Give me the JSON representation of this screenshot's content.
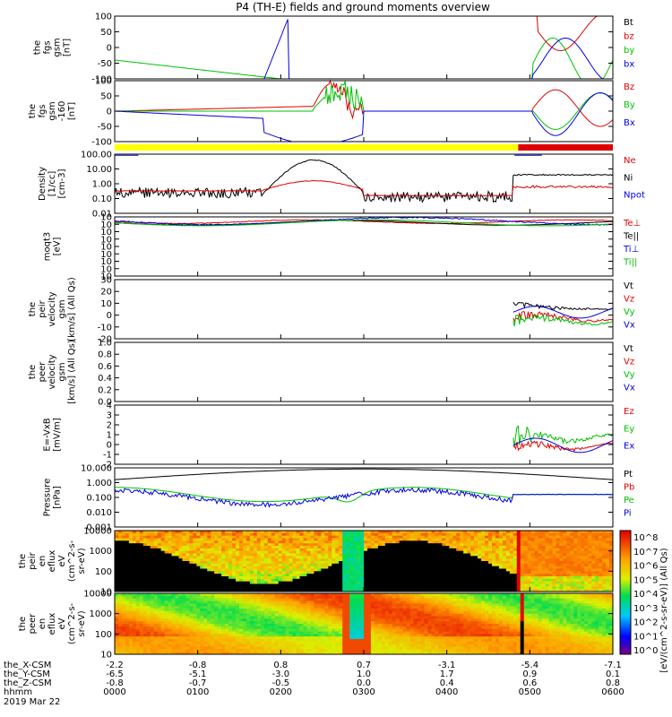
{
  "title": "P4 (TH-E) fields and ground moments overview",
  "date_label": "2019 Mar 22",
  "colors": {
    "black": "#000000",
    "red": "#e00000",
    "green": "#00c000",
    "blue": "#0000e0",
    "yellow": "#ffff00"
  },
  "panels": [
    {
      "id": "fgs",
      "ylabel_lines": [
        "the",
        "fgs",
        "gsm",
        "[nT]"
      ],
      "yticks": [
        "100",
        "50",
        "0",
        "-50",
        "-100"
      ],
      "ylim": [
        -100,
        100
      ],
      "legend": [
        {
          "text": "Bt",
          "color": "black"
        },
        {
          "text": "bz",
          "color": "red"
        },
        {
          "text": "by",
          "color": "green"
        },
        {
          "text": "bx",
          "color": "blue"
        }
      ]
    },
    {
      "id": "fgs_gse",
      "ylabel_lines": [
        "the",
        "fgs",
        "gsm",
        "-160",
        "[nT]"
      ],
      "yticks": [
        "100",
        "50",
        "0",
        "-50",
        "-100"
      ],
      "ylim": [
        -130,
        110
      ],
      "legend": [
        {
          "text": "Bz",
          "color": "red"
        },
        {
          "text": "By",
          "color": "green"
        },
        {
          "text": "Bx",
          "color": "blue"
        }
      ]
    },
    {
      "id": "density",
      "ylabel_lines": [
        "Density",
        "[1/cc]",
        "[cm-3]"
      ],
      "yticks": [
        "100.00",
        "10.00",
        "1.00",
        "0.10",
        "0.01"
      ],
      "log": true,
      "legend": [
        {
          "text": "Ne",
          "color": "red"
        },
        {
          "text": "Ni",
          "color": "black"
        },
        {
          "text": "Npot",
          "color": "blue"
        }
      ]
    },
    {
      "id": "temp",
      "ylabel_lines": [
        "moqt3",
        "[eV]"
      ],
      "yticks": [
        "10",
        "10",
        "10",
        "10",
        "10",
        "10",
        "10",
        "10",
        "10"
      ],
      "legend": [
        {
          "text": "Te⊥",
          "color": "red"
        },
        {
          "text": "Te||",
          "color": "black"
        },
        {
          "text": "Ti⊥",
          "color": "blue"
        },
        {
          "text": "Ti||",
          "color": "green"
        }
      ]
    },
    {
      "id": "peir_vel",
      "ylabel_lines": [
        "the",
        "peir",
        "velocity",
        "gsm",
        "[km/s] (All Qs)"
      ],
      "yticks": [
        "30",
        "20",
        "10",
        "0",
        "-10",
        "-20"
      ],
      "ylim": [
        -20,
        30
      ],
      "legend": [
        {
          "text": "Vt",
          "color": "black"
        },
        {
          "text": "Vz",
          "color": "red"
        },
        {
          "text": "Vy",
          "color": "green"
        },
        {
          "text": "Vx",
          "color": "blue"
        }
      ]
    },
    {
      "id": "peer_vel",
      "ylabel_lines": [
        "the",
        "peer",
        "velocity",
        "gsm",
        "[km/s] (All Qs)"
      ],
      "yticks": [
        "1.0",
        "0.8",
        "0.6",
        "0.4",
        "0.2",
        "0.0"
      ],
      "ylim": [
        0,
        1
      ],
      "legend": [
        {
          "text": "Vt",
          "color": "black"
        },
        {
          "text": "Vz",
          "color": "red"
        },
        {
          "text": "Vy",
          "color": "green"
        },
        {
          "text": "Vx",
          "color": "blue"
        }
      ]
    },
    {
      "id": "efield",
      "ylabel_lines": [
        "E=-VxB",
        "[mV/m]"
      ],
      "yticks": [
        "4",
        "3",
        "2",
        "1",
        "0",
        "-1",
        "-2"
      ],
      "ylim": [
        -2,
        4
      ],
      "legend": [
        {
          "text": "Ez",
          "color": "red"
        },
        {
          "text": "Ey",
          "color": "green"
        },
        {
          "text": "Ex",
          "color": "blue"
        }
      ]
    },
    {
      "id": "pressure",
      "ylabel_lines": [
        "Pressure",
        "[nPa]"
      ],
      "yticks": [
        "10.000",
        "1.000",
        "0.100",
        "0.010",
        "0.001"
      ],
      "log": true,
      "legend": [
        {
          "text": "Pt",
          "color": "black"
        },
        {
          "text": "Pb",
          "color": "red"
        },
        {
          "text": "Pe",
          "color": "green"
        },
        {
          "text": "Pi",
          "color": "blue"
        }
      ]
    },
    {
      "id": "peir_spec",
      "ylabel_lines": [
        "the",
        "peir",
        "en",
        "eflux",
        "eV",
        "(cm^2-s-",
        "sr-eV)"
      ],
      "yticks": [
        "10000",
        "1000",
        "100",
        "10"
      ],
      "spectrogram": true
    },
    {
      "id": "peer_spec",
      "ylabel_lines": [
        "the",
        "peer",
        "en",
        "eflux",
        "eV",
        "(cm^2-s-",
        "sr-eV)"
      ],
      "yticks": [
        "10000",
        "1000",
        "100",
        "10"
      ],
      "spectrogram": true
    }
  ],
  "colorbar": {
    "label": "[eV/(cm^2-s-sr-eV)] (All Qs)",
    "ticks": [
      "10^8",
      "10^7",
      "10^6",
      "10^5",
      "10^4",
      "10^3",
      "10^2",
      "10^1",
      "10^0"
    ]
  },
  "xaxis": {
    "rows": [
      {
        "label": "the_X-CSM",
        "values": [
          "-2.2",
          "-0.8",
          "0.8",
          "0.7",
          "-3.1",
          "-5.4",
          "-7.1"
        ]
      },
      {
        "label": "the_Y-CSM",
        "values": [
          "-6.5",
          "-5.1",
          "-3.0",
          "1.0",
          "1.7",
          "0.9",
          "0.1"
        ]
      },
      {
        "label": "the_Z-CSM",
        "values": [
          "-0.8",
          "-0.7",
          "-0.5",
          "0.0",
          "0.4",
          "0.6",
          "0.8"
        ]
      },
      {
        "label": "hhmm",
        "values": [
          "0000",
          "0100",
          "0200",
          "0300",
          "0400",
          "0500",
          "0600"
        ]
      }
    ]
  },
  "chart_data": {
    "type": "line",
    "title": "P4 (TH-E) fields and ground moments overview",
    "x_ticks": [
      "0000",
      "0100",
      "0200",
      "0300",
      "0400",
      "0500",
      "0600"
    ],
    "xlabel": "hhmm",
    "series_samples": {
      "fgs": [
        {
          "name": "bz",
          "x": [
            "0000",
            "0100",
            "0200",
            "0300",
            "0400",
            "0500",
            "0530",
            "0545",
            "0600"
          ],
          "y": [
            100,
            100,
            100,
            100,
            100,
            100,
            80,
            40,
            90
          ]
        },
        {
          "name": "by",
          "x": [
            "0000",
            "0100",
            "0200",
            "0300",
            "0400",
            "0500",
            "0530",
            "0545",
            "0600"
          ],
          "y": [
            -30,
            -100,
            -100,
            -100,
            -100,
            -100,
            20,
            -60,
            -20
          ]
        },
        {
          "name": "bx",
          "x": [
            "0000",
            "0100",
            "0200",
            "0300",
            "0400",
            "0500",
            "0530",
            "0545",
            "0600"
          ],
          "y": [
            -100,
            -100,
            -100,
            100,
            -100,
            -100,
            30,
            -80,
            -30
          ]
        }
      ],
      "density": [
        {
          "name": "Ni",
          "x": [
            "0000",
            "0100",
            "0200",
            "0230",
            "0300",
            "0400",
            "0500",
            "0600"
          ],
          "y": [
            0.2,
            0.1,
            0.5,
            20,
            80,
            0.1,
            1,
            10
          ]
        },
        {
          "name": "Ne",
          "x": [
            "0000",
            "0100",
            "0200",
            "0300",
            "0400",
            "0500",
            "0600"
          ],
          "y": [
            0.2,
            0.1,
            0.3,
            1,
            0.3,
            1,
            0.8
          ]
        }
      ],
      "pressure": [
        {
          "name": "Pt",
          "x": [
            "0000",
            "0300",
            "0600"
          ],
          "y": [
            1,
            10,
            1
          ]
        },
        {
          "name": "Pe",
          "x": [
            "0000",
            "0100",
            "0200",
            "0300",
            "0400",
            "0500",
            "0600"
          ],
          "y": [
            0.07,
            0.02,
            0.03,
            0.05,
            0.02,
            0.3,
            0.05
          ]
        },
        {
          "name": "Pi",
          "x": [
            "0000",
            "0100",
            "0200",
            "0300",
            "0400",
            "0500",
            "0600"
          ],
          "y": [
            0.08,
            0.01,
            0.03,
            0.15,
            0.01,
            0.3,
            0.05
          ]
        }
      ]
    }
  }
}
